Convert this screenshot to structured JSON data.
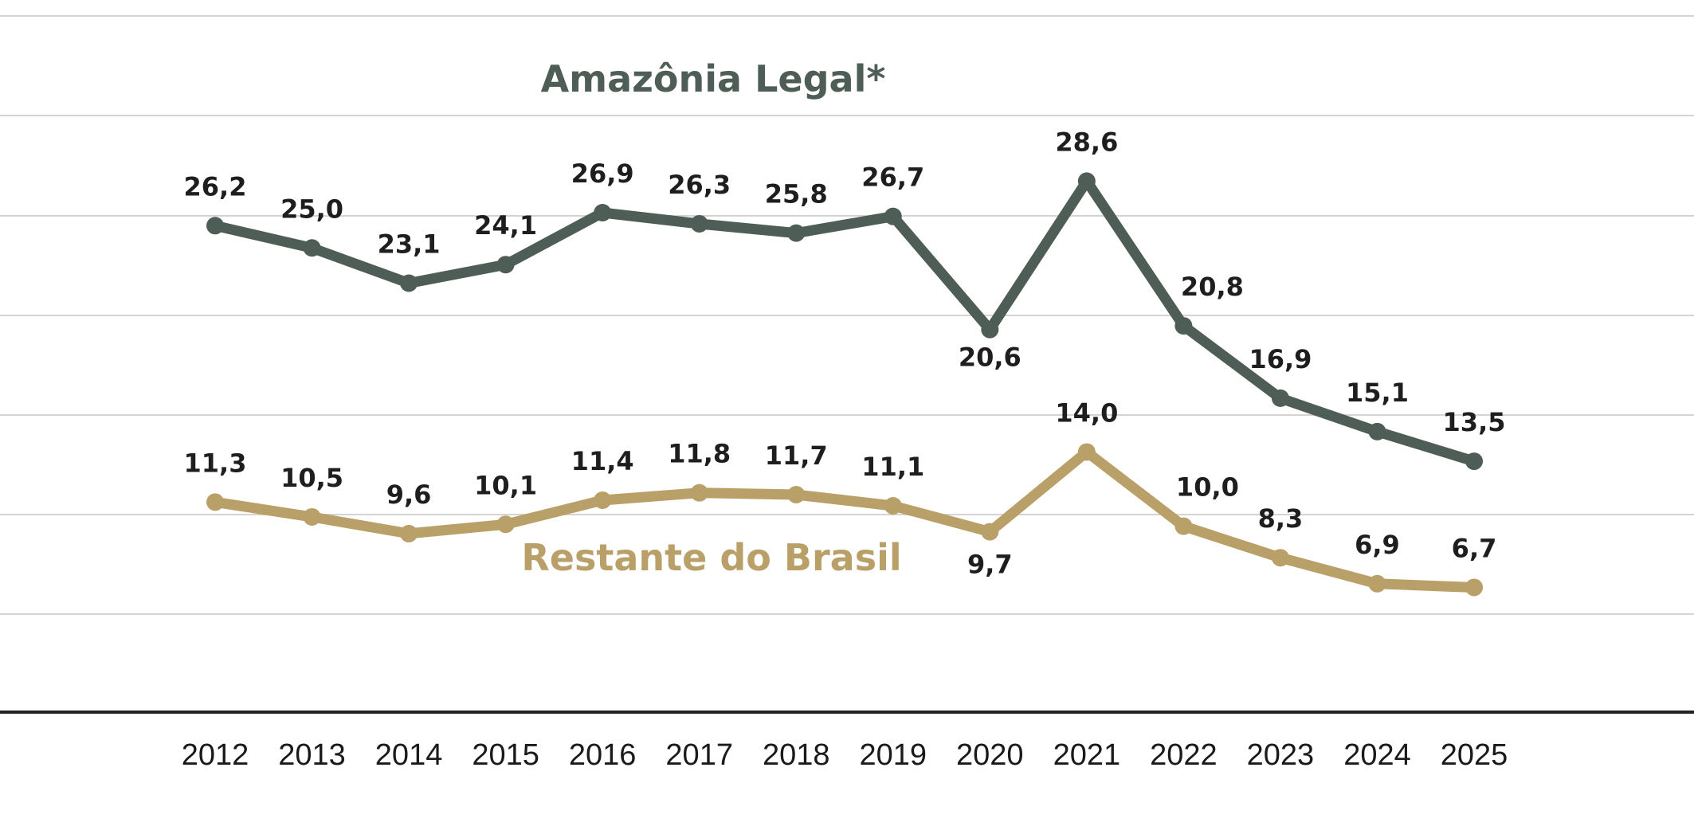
{
  "chart_data": {
    "type": "line",
    "x": [
      "2012",
      "2013",
      "2014",
      "2015",
      "2016",
      "2017",
      "2018",
      "2019",
      "2020",
      "2021",
      "2022",
      "2023",
      "2024",
      "2025"
    ],
    "ylim": [
      0,
      35
    ],
    "grid": true,
    "series": [
      {
        "name": "Amazônia Legal*",
        "color": "#4e5e56",
        "values": [
          26.2,
          25.0,
          23.1,
          24.1,
          26.9,
          26.3,
          25.8,
          26.7,
          20.6,
          28.6,
          20.8,
          16.9,
          15.1,
          13.5
        ],
        "labels": [
          "26,2",
          "25,0",
          "23,1",
          "24,1",
          "26,9",
          "26,3",
          "25,8",
          "26,7",
          "20,6",
          "28,6",
          "20,8",
          "16,9",
          "15,1",
          "13,5"
        ]
      },
      {
        "name": "Restante do Brasil",
        "color": "#b9a068",
        "values": [
          11.3,
          10.5,
          9.6,
          10.1,
          11.4,
          11.8,
          11.7,
          11.1,
          9.7,
          14.0,
          10.0,
          8.3,
          6.9,
          6.7
        ],
        "labels": [
          "11,3",
          "10,5",
          "9,6",
          "10,1",
          "11,4",
          "11,8",
          "11,7",
          "11,1",
          "9,7",
          "14,0",
          "10,0",
          "8,3",
          "6,9",
          "6,7"
        ]
      }
    ]
  }
}
